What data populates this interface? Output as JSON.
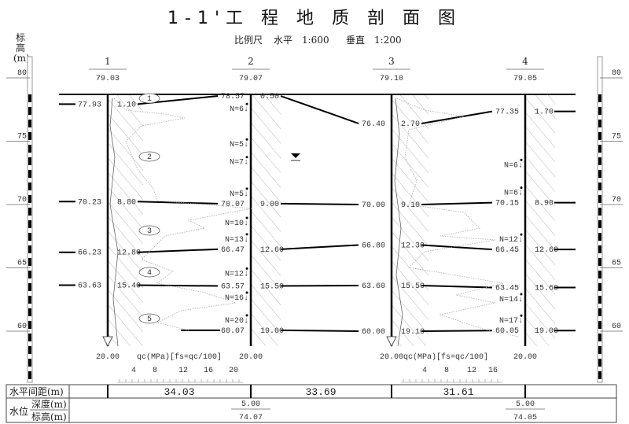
{
  "title": "1-1'工 程 地 质 剖 面 图",
  "scale": {
    "label": "比例尺",
    "horizontal": "水平　1:600",
    "vertical": "垂直　1:200"
  },
  "elevation_axis": {
    "label_1": "标",
    "label_2": "高",
    "label_3": "(m)",
    "ticks": [
      "80",
      "75",
      "70",
      "65",
      "60"
    ]
  },
  "boreholes": [
    {
      "id": "1",
      "ground": "79.03",
      "boundaries": [
        {
          "depth": "1.10",
          "elev": "77.93"
        },
        {
          "depth": "8.80",
          "elev": "70.23"
        },
        {
          "depth": "12.80",
          "elev": "66.23"
        },
        {
          "depth": "15.40",
          "elev": "63.63"
        },
        null
      ],
      "end_depth": "20.00",
      "n_values": []
    },
    {
      "id": "2",
      "ground": "79.07",
      "boundaries": [
        {
          "depth": "0.50",
          "elev": "78.57"
        },
        {
          "depth": "9.00",
          "elev": "70.07"
        },
        {
          "depth": "12.60",
          "elev": "66.47"
        },
        {
          "depth": "15.50",
          "elev": "63.57"
        },
        {
          "depth": "19.00",
          "elev": "60.07"
        }
      ],
      "end_depth": "20.00",
      "n_values": [
        {
          "label": "N=6↓",
          "depth": 1.5
        },
        {
          "label": "N=5↓",
          "depth": 4.3
        },
        {
          "label": "N=7↓",
          "depth": 5.7
        },
        {
          "label": "N=5↓",
          "depth": 8.3
        },
        {
          "label": "N=10↓",
          "depth": 10.5
        },
        {
          "label": "N=13↓",
          "depth": 12.4
        },
        {
          "label": "N=12↓",
          "depth": 14.5
        },
        {
          "label": "N=16↓",
          "depth": 16.4
        },
        {
          "label": "N=20↓",
          "depth": 18.4
        }
      ]
    },
    {
      "id": "3",
      "ground": "79.10",
      "boundaries": [
        {
          "depth": "2.70",
          "elev": "76.40"
        },
        {
          "depth": "9.10",
          "elev": "70.00"
        },
        {
          "depth": "12.30",
          "elev": "66.80"
        },
        {
          "depth": "15.50",
          "elev": "63.60"
        },
        {
          "depth": "19.10",
          "elev": "60.00"
        }
      ],
      "end_depth": "20.00",
      "n_values": []
    },
    {
      "id": "4",
      "ground": "79.05",
      "boundaries": [
        {
          "depth": "1.70",
          "elev": "77.35"
        },
        {
          "depth": "8.90",
          "elev": "70.15"
        },
        {
          "depth": "12.60",
          "elev": "66.45"
        },
        {
          "depth": "15.60",
          "elev": "63.45"
        },
        {
          "depth": "19.00",
          "elev": "60.05"
        }
      ],
      "end_depth": "20.00",
      "n_values": [
        {
          "label": "N=6↓",
          "depth": 5.9
        },
        {
          "label": "N=6↓",
          "depth": 8.4
        },
        {
          "label": "N=12↓",
          "depth": 12.4
        },
        {
          "label": "N=14↓",
          "depth": 16.5
        },
        {
          "label": "N=17↓",
          "depth": 18.4
        }
      ]
    }
  ],
  "layers": [
    "1",
    "2",
    "3",
    "4",
    "5"
  ],
  "cpt_axis": {
    "label": "qc(MPa)[fs=qc/100]",
    "ticks_1": [
      "4",
      "8",
      "12",
      "16",
      "20"
    ],
    "ticks_3": [
      "4",
      "8",
      "12",
      "16"
    ]
  },
  "table": {
    "spacing_label": "水平间距(m)",
    "spacings": [
      "34.03",
      "33.69",
      "31.61"
    ],
    "water_label": "水位",
    "water_depth_label": "深度(m)",
    "water_elev_label": "标高(m)",
    "water": [
      {
        "borehole": "2",
        "depth": "5.00",
        "elev": "74.07"
      },
      {
        "borehole": "4",
        "depth": "5.00",
        "elev": "74.05"
      }
    ]
  }
}
